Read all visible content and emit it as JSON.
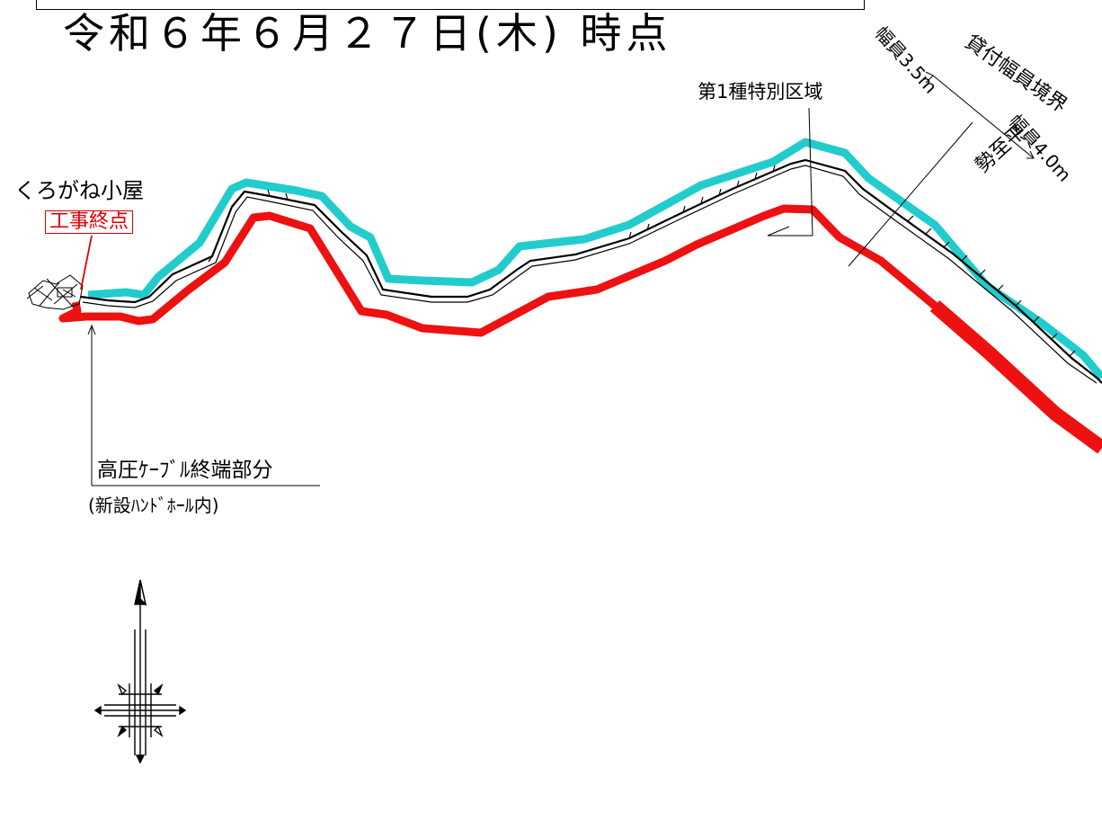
{
  "title": "令和６年６月２７日(木) 時点",
  "labels": {
    "hut": "くろがね小屋",
    "endpoint": "工事終点",
    "cable_line1": "高圧ｹｰﾌﾞﾙ終端部分",
    "cable_line2": "(新設ﾊﾝﾄﾞﾎｰﾙ内)",
    "zone": "第1種特別区域",
    "width_35": "幅員3.5m",
    "boundary": "貸付幅員境界",
    "width_40": "幅員4.0m",
    "seishidaira": "勢至平"
  },
  "colors": {
    "route_cyan": "#22cccc",
    "route_red": "#ee1111",
    "line_black": "#000000",
    "label_red": "#e00000"
  },
  "icons": {
    "compass": "north-arrow-icon"
  }
}
